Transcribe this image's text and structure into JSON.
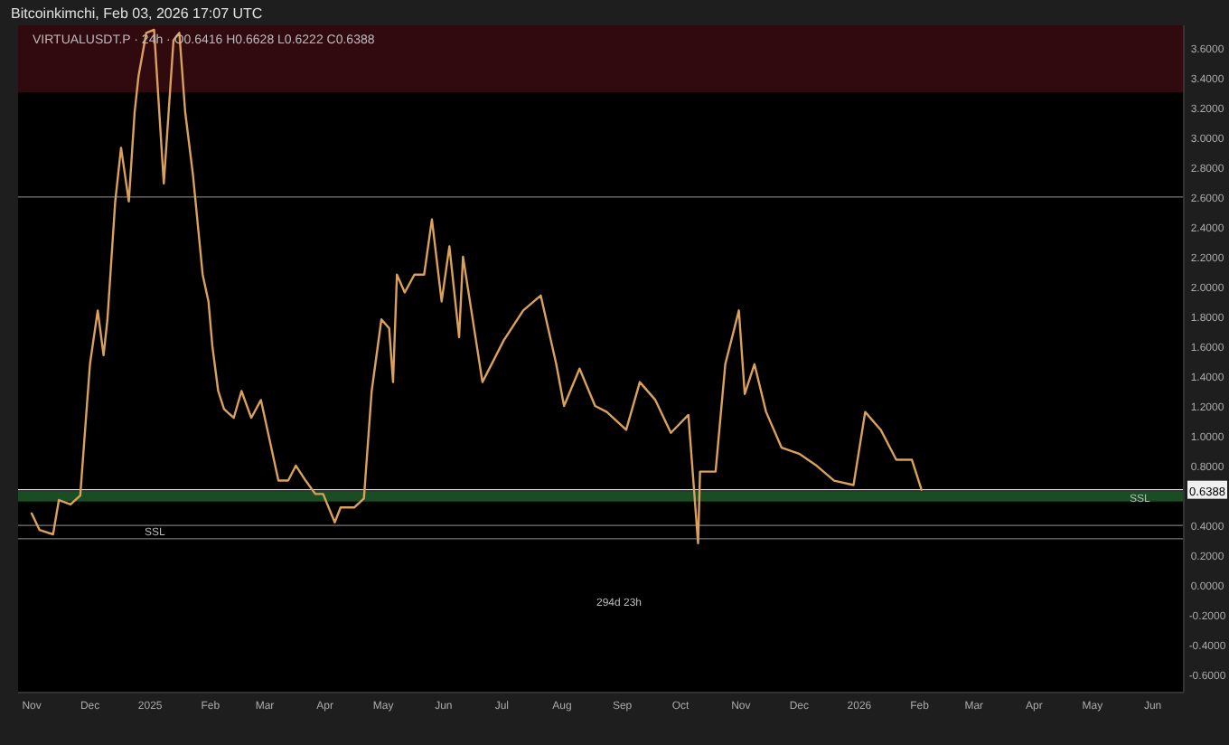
{
  "chart_data": {
    "type": "line",
    "subtitle": "Bitcoinkimchi, Feb 03, 2026 17:07 UTC",
    "title": "VIRTUALUSDT.P · 24h · O0.6416 H0.6628 L0.6222 C0.6388",
    "x": [
      "2024-11-01",
      "2024-11-05",
      "2024-11-12",
      "2024-11-15",
      "2024-11-21",
      "2024-11-26",
      "2024-12-01",
      "2024-12-05",
      "2024-12-08",
      "2024-12-10",
      "2024-12-14",
      "2024-12-17",
      "2024-12-21",
      "2024-12-24",
      "2024-12-26",
      "2024-12-30",
      "2025-01-03",
      "2025-01-08",
      "2025-01-13",
      "2025-01-16",
      "2025-01-19",
      "2025-01-23",
      "2025-01-28",
      "2025-01-31",
      "2025-02-02",
      "2025-02-05",
      "2025-02-08",
      "2025-02-13",
      "2025-02-17",
      "2025-02-22",
      "2025-02-27",
      "2025-03-03",
      "2025-03-08",
      "2025-03-13",
      "2025-03-17",
      "2025-03-22",
      "2025-03-27",
      "2025-03-31",
      "2025-04-06",
      "2025-04-09",
      "2025-04-16",
      "2025-04-21",
      "2025-04-25",
      "2025-04-30",
      "2025-05-04",
      "2025-05-06",
      "2025-05-08",
      "2025-05-12",
      "2025-05-17",
      "2025-05-22",
      "2025-05-26",
      "2025-05-31",
      "2025-06-04",
      "2025-06-09",
      "2025-06-11",
      "2025-06-21",
      "2025-07-02",
      "2025-07-12",
      "2025-07-21",
      "2025-07-29",
      "2025-08-02",
      "2025-08-10",
      "2025-08-18",
      "2025-08-24",
      "2025-09-03",
      "2025-09-10",
      "2025-09-18",
      "2025-09-26",
      "2025-10-05",
      "2025-10-10",
      "2025-10-11",
      "2025-10-19",
      "2025-10-24",
      "2025-10-31",
      "2025-11-03",
      "2025-11-08",
      "2025-11-14",
      "2025-11-22",
      "2025-12-01",
      "2025-12-10",
      "2025-12-19",
      "2025-12-29",
      "2026-01-04",
      "2026-01-12",
      "2026-01-20",
      "2026-01-28",
      "2026-02-02"
    ],
    "series": [
      {
        "color": "#d9a15a",
        "values": [
          0.48,
          0.37,
          0.34,
          0.57,
          0.54,
          0.6,
          1.48,
          1.84,
          1.54,
          1.78,
          2.57,
          2.93,
          2.57,
          3.17,
          3.41,
          3.7,
          3.72,
          2.69,
          3.65,
          3.7,
          3.17,
          2.75,
          2.08,
          1.9,
          1.6,
          1.3,
          1.18,
          1.12,
          1.3,
          1.12,
          1.24,
          1.0,
          0.7,
          0.7,
          0.8,
          0.7,
          0.61,
          0.61,
          0.42,
          0.52,
          0.52,
          0.58,
          1.3,
          1.78,
          1.72,
          1.36,
          2.08,
          1.96,
          2.08,
          2.08,
          2.45,
          1.9,
          2.27,
          1.66,
          2.2,
          1.36,
          1.64,
          1.84,
          1.94,
          1.48,
          1.2,
          1.45,
          1.2,
          1.16,
          1.04,
          1.36,
          1.24,
          1.02,
          1.14,
          0.28,
          0.76,
          0.76,
          1.48,
          1.84,
          1.28,
          1.48,
          1.16,
          0.92,
          0.88,
          0.8,
          0.7,
          0.67,
          1.16,
          1.04,
          0.84,
          0.84,
          0.6388
        ]
      }
    ],
    "xlim": [
      "2024-10-25",
      "2026-06-17"
    ],
    "xticks": [
      {
        "value": "2024-11-01",
        "label": "Nov"
      },
      {
        "value": "2024-12-01",
        "label": "Dec"
      },
      {
        "value": "2025-01-01",
        "label": "2025"
      },
      {
        "value": "2025-02-01",
        "label": "Feb"
      },
      {
        "value": "2025-03-01",
        "label": "Mar"
      },
      {
        "value": "2025-04-01",
        "label": "Apr"
      },
      {
        "value": "2025-05-01",
        "label": "May"
      },
      {
        "value": "2025-06-01",
        "label": "Jun"
      },
      {
        "value": "2025-07-01",
        "label": "Jul"
      },
      {
        "value": "2025-08-01",
        "label": "Aug"
      },
      {
        "value": "2025-09-01",
        "label": "Sep"
      },
      {
        "value": "2025-10-01",
        "label": "Oct"
      },
      {
        "value": "2025-11-01",
        "label": "Nov"
      },
      {
        "value": "2025-12-01",
        "label": "Dec"
      },
      {
        "value": "2026-01-01",
        "label": "2026"
      },
      {
        "value": "2026-02-01",
        "label": "Feb"
      },
      {
        "value": "2026-03-01",
        "label": "Mar"
      },
      {
        "value": "2026-04-01",
        "label": "Apr"
      },
      {
        "value": "2026-05-01",
        "label": "May"
      },
      {
        "value": "2026-06-01",
        "label": "Jun"
      }
    ],
    "ylim": [
      -0.72,
      3.75
    ],
    "yticks": [
      {
        "value": 3.6,
        "label": "3.6000"
      },
      {
        "value": 3.4,
        "label": "3.4000"
      },
      {
        "value": 3.2,
        "label": "3.2000"
      },
      {
        "value": 3.0,
        "label": "3.0000"
      },
      {
        "value": 2.8,
        "label": "2.8000"
      },
      {
        "value": 2.6,
        "label": "2.6000"
      },
      {
        "value": 2.4,
        "label": "2.4000"
      },
      {
        "value": 2.2,
        "label": "2.2000"
      },
      {
        "value": 2.0,
        "label": "2.0000"
      },
      {
        "value": 1.8,
        "label": "1.8000"
      },
      {
        "value": 1.6,
        "label": "1.6000"
      },
      {
        "value": 1.4,
        "label": "1.4000"
      },
      {
        "value": 1.2,
        "label": "1.2000"
      },
      {
        "value": 1.0,
        "label": "1.0000"
      },
      {
        "value": 0.8,
        "label": "0.8000"
      },
      {
        "value": 0.4,
        "label": "0.4000"
      },
      {
        "value": 0.2,
        "label": "0.2000"
      },
      {
        "value": 0,
        "label": "0.0000"
      },
      {
        "value": -0.2,
        "label": "-0.2000"
      },
      {
        "value": -0.4,
        "label": "-0.4000"
      },
      {
        "value": -0.6,
        "label": "-0.6000"
      }
    ],
    "bands": [
      {
        "axis": "y",
        "from": 3.3,
        "to": 3.75,
        "color": "#3a0c12"
      },
      {
        "axis": "y",
        "from": 0.56,
        "to": 0.63,
        "color": "#1f5a2a",
        "label": "SSL"
      }
    ],
    "ref_lines": [
      {
        "axis": "y",
        "value": 2.6,
        "color": "#777777"
      },
      {
        "axis": "y",
        "value": 0.4,
        "color": "#777777"
      },
      {
        "axis": "y",
        "value": 0.31,
        "color": "#777777",
        "label": "SSL"
      },
      {
        "axis": "y",
        "value": 0.6388,
        "color": "#dddddd",
        "label": "0.6388"
      }
    ],
    "annotations": [
      "294d 23h"
    ]
  }
}
